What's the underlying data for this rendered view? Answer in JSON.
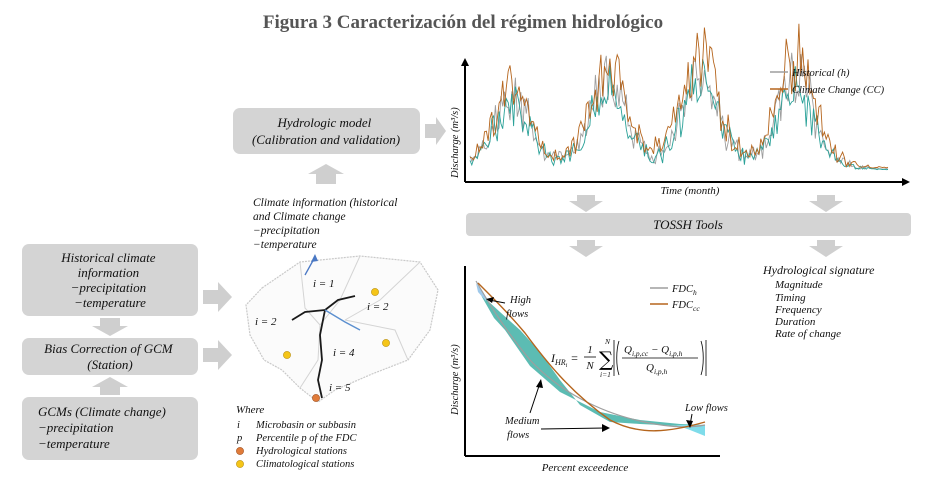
{
  "title": "Figura 3 Caracterización del régimen hidrológico",
  "boxes": {
    "hydrologic_model": [
      "Hydrologic model",
      "(Calibration and validation)"
    ],
    "historical_climate": [
      "Historical climate",
      "information",
      "−precipitation",
      "−temperature"
    ],
    "bias_correction": [
      "Bias Correction of GCM",
      "(Station)"
    ],
    "gcms": [
      "GCMs (Climate change)",
      "−precipitation",
      "−temperature"
    ],
    "tossh": "TOSSH Tools"
  },
  "climate_info": [
    "Climate information (historical",
    "and Climate change",
    "−precipitation",
    "−temperature"
  ],
  "basin": {
    "labels": [
      "i = 1",
      "i = 2",
      "i = 2",
      "i = 4",
      "i = 5"
    ]
  },
  "where": {
    "title": "Where",
    "rows": [
      {
        "sym": "i",
        "text": "Microbasin or subbasin"
      },
      {
        "sym": "p",
        "text": "Percentile p of the FDC"
      },
      {
        "sym": "",
        "text": "Hydrological stations",
        "color": "#e07b39"
      },
      {
        "sym": "",
        "text": "Climatological stations",
        "color": "#f5c518"
      }
    ]
  },
  "hydrograph": {
    "ylabel": "Discharge (m³/s)",
    "xlabel": "Time (month)",
    "legend": [
      "Historical (h)",
      "Climate Change (CC)"
    ],
    "colors": {
      "historical": "#9e9e9e",
      "cc": "#b5651d",
      "teal": "#2aa198"
    }
  },
  "signatures": {
    "title": "Hydrological signature",
    "items": [
      "Magnitude",
      "Timing",
      "Frequency",
      "Duration",
      "Rate of change"
    ]
  },
  "fdc": {
    "ylabel": "Discharge (m³/s)",
    "xlabel": "Percent exceedence",
    "legend": [
      "FDC",
      "FDC"
    ],
    "legend_sub": [
      "h",
      "cc"
    ],
    "annotations": {
      "high": [
        "High",
        "flows"
      ],
      "medium": [
        "Medium",
        "flows"
      ],
      "low": "Low flows"
    },
    "formula_lhs": "I",
    "formula_lhs_sub": "HR",
    "formula_lhs_subsub": "i",
    "formula_num": "Q",
    "formula_num_sub": "i,p,cc",
    "formula_num2": "Q",
    "formula_num2_sub": "i,p,h",
    "formula_den": "Q",
    "formula_den_sub": "i,p,h",
    "sum_top": "N",
    "sum_bot": "i=1",
    "frac_one": "1",
    "frac_N": "N"
  }
}
